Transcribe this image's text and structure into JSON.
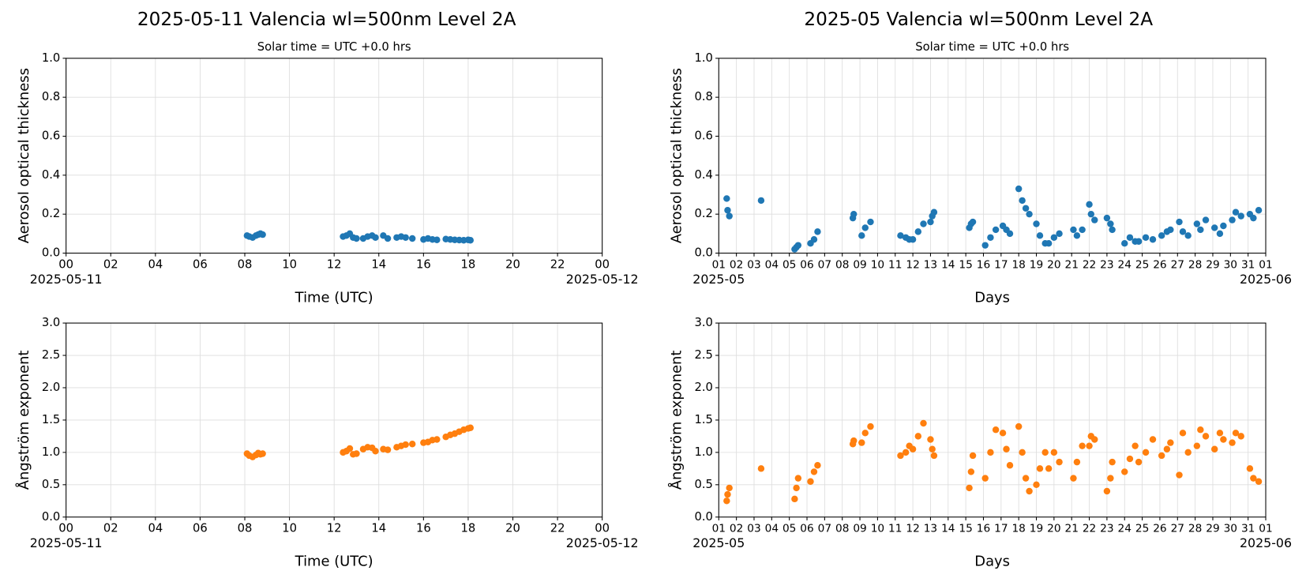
{
  "chart_data": [
    {
      "type": "scatter",
      "title": "2025-05-11  Valencia  wl=500nm  Level 2A",
      "subtitle": "Solar time = UTC +0.0 hrs",
      "xlabel": "Time (UTC)",
      "ylabel": "Aerosol optical thickness",
      "color": "#1f77b4",
      "grid": true,
      "x": [
        8.1,
        8.2,
        8.35,
        8.5,
        8.6,
        8.7,
        8.8,
        12.4,
        12.55,
        12.7,
        12.85,
        13.0,
        13.3,
        13.5,
        13.7,
        13.85,
        14.2,
        14.4,
        14.8,
        15.0,
        15.2,
        15.5,
        16.0,
        16.2,
        16.4,
        16.6,
        17.0,
        17.2,
        17.4,
        17.6,
        17.8,
        18.0,
        18.1
      ],
      "values": [
        0.09,
        0.085,
        0.08,
        0.09,
        0.095,
        0.1,
        0.095,
        0.085,
        0.09,
        0.1,
        0.08,
        0.075,
        0.075,
        0.085,
        0.09,
        0.08,
        0.09,
        0.075,
        0.08,
        0.085,
        0.08,
        0.075,
        0.07,
        0.075,
        0.07,
        0.068,
        0.072,
        0.07,
        0.068,
        0.067,
        0.066,
        0.068,
        0.066
      ],
      "xlim": [
        0,
        24
      ],
      "ylim": [
        0,
        1
      ],
      "xticks": [
        {
          "value": 0,
          "label": "00"
        },
        {
          "value": 2,
          "label": "02"
        },
        {
          "value": 4,
          "label": "04"
        },
        {
          "value": 6,
          "label": "06"
        },
        {
          "value": 8,
          "label": "08"
        },
        10,
        12,
        14,
        16,
        18,
        20,
        22,
        {
          "value": 24,
          "label": "00"
        }
      ],
      "yticks": [
        {
          "value": 0,
          "label": "0.0"
        },
        0.2,
        0.4,
        0.6,
        0.8,
        {
          "value": 1,
          "label": "1.0"
        }
      ],
      "x_sublabels": [
        "2025-05-11",
        "2025-05-12"
      ]
    },
    {
      "type": "scatter",
      "title": "2025-05  Valencia  wl=500nm  Level 2A",
      "subtitle": "Solar time = UTC +0.0 hrs",
      "xlabel": "Days",
      "ylabel": "Aerosol optical thickness",
      "color": "#1f77b4",
      "grid": true,
      "x": [
        1.45,
        1.5,
        1.6,
        3.4,
        5.3,
        5.4,
        5.5,
        6.2,
        6.4,
        6.6,
        8.6,
        8.65,
        9.1,
        9.3,
        9.6,
        11.3,
        11.6,
        11.8,
        12.0,
        12.3,
        12.6,
        13.0,
        13.1,
        13.2,
        15.2,
        15.3,
        15.4,
        16.1,
        16.4,
        16.7,
        17.1,
        17.3,
        17.5,
        18.0,
        18.2,
        18.4,
        18.6,
        19.0,
        19.2,
        19.5,
        19.7,
        20.0,
        20.3,
        21.1,
        21.3,
        21.6,
        22.0,
        22.1,
        22.3,
        23.0,
        23.2,
        23.3,
        24.0,
        24.3,
        24.6,
        24.8,
        25.2,
        25.6,
        26.1,
        26.4,
        26.6,
        27.1,
        27.3,
        27.6,
        28.1,
        28.3,
        28.6,
        29.1,
        29.4,
        29.6,
        30.1,
        30.3,
        30.6,
        31.1,
        31.3,
        31.6
      ],
      "values": [
        0.28,
        0.22,
        0.19,
        0.27,
        0.02,
        0.03,
        0.04,
        0.05,
        0.07,
        0.11,
        0.18,
        0.2,
        0.09,
        0.13,
        0.16,
        0.09,
        0.08,
        0.07,
        0.07,
        0.11,
        0.15,
        0.16,
        0.19,
        0.21,
        0.13,
        0.15,
        0.16,
        0.04,
        0.08,
        0.12,
        0.14,
        0.12,
        0.1,
        0.33,
        0.27,
        0.23,
        0.2,
        0.15,
        0.09,
        0.05,
        0.05,
        0.08,
        0.1,
        0.12,
        0.09,
        0.12,
        0.25,
        0.2,
        0.17,
        0.18,
        0.15,
        0.12,
        0.05,
        0.08,
        0.06,
        0.06,
        0.08,
        0.07,
        0.09,
        0.11,
        0.12,
        0.16,
        0.11,
        0.09,
        0.15,
        0.12,
        0.17,
        0.13,
        0.1,
        0.14,
        0.17,
        0.21,
        0.19,
        0.2,
        0.18,
        0.22
      ],
      "xlim": [
        1,
        32
      ],
      "ylim": [
        0,
        1
      ],
      "xticks": [
        {
          "value": 1,
          "label": "01"
        },
        {
          "value": 2,
          "label": "02"
        },
        {
          "value": 3,
          "label": "03"
        },
        {
          "value": 4,
          "label": "04"
        },
        {
          "value": 5,
          "label": "05"
        },
        {
          "value": 6,
          "label": "06"
        },
        {
          "value": 7,
          "label": "07"
        },
        {
          "value": 8,
          "label": "08"
        },
        {
          "value": 9,
          "label": "09"
        },
        10,
        11,
        12,
        13,
        14,
        15,
        16,
        17,
        18,
        19,
        20,
        21,
        22,
        23,
        24,
        25,
        26,
        27,
        28,
        29,
        30,
        31,
        {
          "value": 32,
          "label": "01"
        }
      ],
      "yticks": [
        {
          "value": 0,
          "label": "0.0"
        },
        0.2,
        0.4,
        0.6,
        0.8,
        {
          "value": 1,
          "label": "1.0"
        }
      ],
      "x_sublabels": [
        "2025-05",
        "2025-06"
      ]
    },
    {
      "type": "scatter",
      "xlabel": "Time (UTC)",
      "ylabel": "Ångström exponent",
      "color": "#ff7f0e",
      "grid": true,
      "x": [
        8.1,
        8.2,
        8.35,
        8.5,
        8.6,
        8.7,
        8.8,
        12.4,
        12.55,
        12.7,
        12.85,
        13.0,
        13.3,
        13.5,
        13.7,
        13.85,
        14.2,
        14.4,
        14.8,
        15.0,
        15.2,
        15.5,
        16.0,
        16.2,
        16.4,
        16.6,
        17.0,
        17.2,
        17.4,
        17.6,
        17.8,
        18.0,
        18.1
      ],
      "values": [
        0.98,
        0.95,
        0.93,
        0.96,
        0.99,
        0.97,
        0.98,
        1.0,
        1.02,
        1.06,
        0.97,
        0.98,
        1.05,
        1.08,
        1.07,
        1.02,
        1.05,
        1.04,
        1.08,
        1.1,
        1.12,
        1.13,
        1.15,
        1.16,
        1.19,
        1.2,
        1.24,
        1.27,
        1.29,
        1.32,
        1.35,
        1.37,
        1.38
      ],
      "xlim": [
        0,
        24
      ],
      "ylim": [
        0,
        3
      ],
      "xticks": [
        {
          "value": 0,
          "label": "00"
        },
        {
          "value": 2,
          "label": "02"
        },
        {
          "value": 4,
          "label": "04"
        },
        {
          "value": 6,
          "label": "06"
        },
        {
          "value": 8,
          "label": "08"
        },
        10,
        12,
        14,
        16,
        18,
        20,
        22,
        {
          "value": 24,
          "label": "00"
        }
      ],
      "yticks": [
        {
          "value": 0,
          "label": "0.0"
        },
        0.5,
        {
          "value": 1,
          "label": "1.0"
        },
        1.5,
        {
          "value": 2,
          "label": "2.0"
        },
        2.5,
        {
          "value": 3,
          "label": "3.0"
        }
      ],
      "x_sublabels": [
        "2025-05-11",
        "2025-05-12"
      ]
    },
    {
      "type": "scatter",
      "xlabel": "Days",
      "ylabel": "Ångström exponent",
      "color": "#ff7f0e",
      "grid": true,
      "x": [
        1.45,
        1.5,
        1.6,
        3.4,
        5.3,
        5.4,
        5.5,
        6.2,
        6.4,
        6.6,
        8.6,
        8.65,
        9.1,
        9.3,
        9.6,
        11.3,
        11.6,
        11.8,
        12.0,
        12.3,
        12.6,
        13.0,
        13.1,
        13.2,
        15.2,
        15.3,
        15.4,
        16.1,
        16.4,
        16.7,
        17.1,
        17.3,
        17.5,
        18.0,
        18.2,
        18.4,
        18.6,
        19.0,
        19.2,
        19.5,
        19.7,
        20.0,
        20.3,
        21.1,
        21.3,
        21.6,
        22.0,
        22.1,
        22.3,
        23.0,
        23.2,
        23.3,
        24.0,
        24.3,
        24.6,
        24.8,
        25.2,
        25.6,
        26.1,
        26.4,
        26.6,
        27.1,
        27.3,
        27.6,
        28.1,
        28.3,
        28.6,
        29.1,
        29.4,
        29.6,
        30.1,
        30.3,
        30.6,
        31.1,
        31.3,
        31.6
      ],
      "values": [
        0.25,
        0.35,
        0.45,
        0.75,
        0.28,
        0.45,
        0.6,
        0.55,
        0.7,
        0.8,
        1.13,
        1.18,
        1.15,
        1.3,
        1.4,
        0.95,
        1.0,
        1.1,
        1.05,
        1.25,
        1.45,
        1.2,
        1.05,
        0.95,
        0.45,
        0.7,
        0.95,
        0.6,
        1.0,
        1.35,
        1.3,
        1.05,
        0.8,
        1.4,
        1.0,
        0.6,
        0.4,
        0.5,
        0.75,
        1.0,
        0.75,
        1.0,
        0.85,
        0.6,
        0.85,
        1.1,
        1.1,
        1.25,
        1.2,
        0.4,
        0.6,
        0.85,
        0.7,
        0.9,
        1.1,
        0.85,
        1.0,
        1.2,
        0.95,
        1.05,
        1.15,
        0.65,
        1.3,
        1.0,
        1.1,
        1.35,
        1.25,
        1.05,
        1.3,
        1.2,
        1.15,
        1.3,
        1.25,
        0.75,
        0.6,
        0.55
      ],
      "xlim": [
        1,
        32
      ],
      "ylim": [
        0,
        3
      ],
      "xticks": [
        {
          "value": 1,
          "label": "01"
        },
        {
          "value": 2,
          "label": "02"
        },
        {
          "value": 3,
          "label": "03"
        },
        {
          "value": 4,
          "label": "04"
        },
        {
          "value": 5,
          "label": "05"
        },
        {
          "value": 6,
          "label": "06"
        },
        {
          "value": 7,
          "label": "07"
        },
        {
          "value": 8,
          "label": "08"
        },
        {
          "value": 9,
          "label": "09"
        },
        10,
        11,
        12,
        13,
        14,
        15,
        16,
        17,
        18,
        19,
        20,
        21,
        22,
        23,
        24,
        25,
        26,
        27,
        28,
        29,
        30,
        31,
        {
          "value": 32,
          "label": "01"
        }
      ],
      "yticks": [
        {
          "value": 0,
          "label": "0.0"
        },
        0.5,
        {
          "value": 1,
          "label": "1.0"
        },
        1.5,
        {
          "value": 2,
          "label": "2.0"
        },
        2.5,
        {
          "value": 3,
          "label": "3.0"
        }
      ],
      "x_sublabels": [
        "2025-05",
        "2025-06"
      ]
    }
  ]
}
